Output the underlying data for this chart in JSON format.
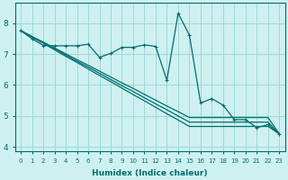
{
  "bg_color": "#cff0f0",
  "line_color": "#006e6e",
  "grid_color": "#9ed8d8",
  "ylabel_vals": [
    4,
    5,
    6,
    7,
    8
  ],
  "xlabel_vals": [
    0,
    1,
    2,
    3,
    4,
    5,
    6,
    7,
    8,
    9,
    10,
    11,
    12,
    13,
    14,
    15,
    16,
    17,
    18,
    19,
    20,
    21,
    22,
    23
  ],
  "xlabel": "Humidex (Indice chaleur)",
  "line_zigzag": [
    7.76,
    7.5,
    7.28,
    7.27,
    7.27,
    7.27,
    7.32,
    6.9,
    7.02,
    7.22,
    7.22,
    7.3,
    7.25,
    6.15,
    8.32,
    7.62,
    5.42,
    5.56,
    5.35,
    4.88,
    4.88,
    4.62,
    4.72,
    4.42
  ],
  "line_straight1": [
    7.76,
    7.55,
    7.35,
    7.14,
    6.93,
    6.73,
    6.52,
    6.31,
    6.11,
    5.9,
    5.69,
    5.49,
    5.28,
    5.07,
    4.87,
    4.66,
    4.66,
    4.66,
    4.66,
    4.66,
    4.66,
    4.66,
    4.66,
    4.42
  ],
  "line_straight2": [
    7.76,
    7.56,
    7.37,
    7.17,
    6.97,
    6.77,
    6.58,
    6.38,
    6.18,
    5.98,
    5.79,
    5.59,
    5.39,
    5.2,
    5.0,
    4.8,
    4.8,
    4.8,
    4.8,
    4.8,
    4.8,
    4.8,
    4.8,
    4.42
  ],
  "line_straight3": [
    7.76,
    7.57,
    7.39,
    7.2,
    7.01,
    6.82,
    6.64,
    6.45,
    6.26,
    6.07,
    5.89,
    5.7,
    5.51,
    5.32,
    5.14,
    4.95,
    4.95,
    4.95,
    4.95,
    4.95,
    4.95,
    4.95,
    4.95,
    4.42
  ],
  "markersize": 3,
  "linewidth": 0.9
}
